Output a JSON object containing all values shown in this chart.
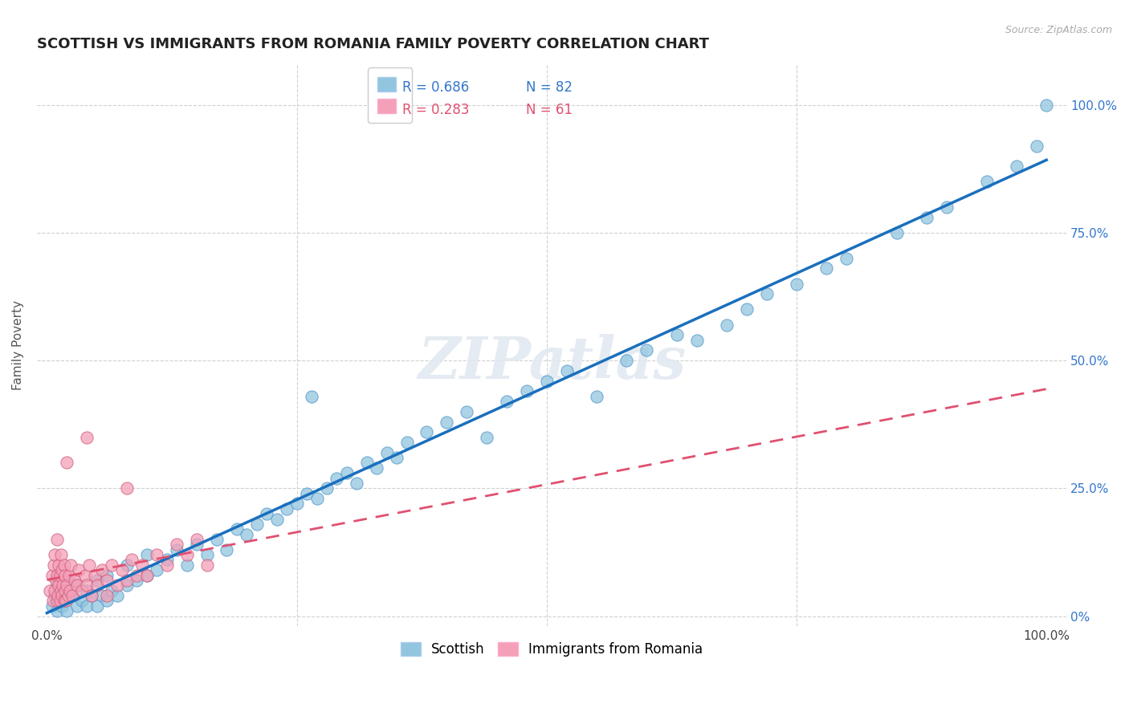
{
  "title": "SCOTTISH VS IMMIGRANTS FROM ROMANIA FAMILY POVERTY CORRELATION CHART",
  "source": "Source: ZipAtlas.com",
  "ylabel": "Family Poverty",
  "legend_bottom": [
    "Scottish",
    "Immigrants from Romania"
  ],
  "blue_R": 0.686,
  "blue_N": 82,
  "pink_R": 0.283,
  "pink_N": 61,
  "blue_color": "#92c5de",
  "pink_color": "#f4a0b8",
  "blue_line_color": "#1a6fbd",
  "pink_line_color": "#e05070",
  "blue_edge_color": "#5599cc",
  "pink_edge_color": "#d06080",
  "watermark": "ZIPatlas",
  "blue_scatter_x": [
    0.005,
    0.008,
    0.01,
    0.01,
    0.012,
    0.015,
    0.015,
    0.018,
    0.02,
    0.02,
    0.025,
    0.03,
    0.03,
    0.035,
    0.04,
    0.04,
    0.045,
    0.05,
    0.05,
    0.055,
    0.06,
    0.06,
    0.065,
    0.07,
    0.08,
    0.08,
    0.09,
    0.1,
    0.1,
    0.11,
    0.12,
    0.13,
    0.14,
    0.15,
    0.16,
    0.17,
    0.18,
    0.19,
    0.2,
    0.21,
    0.22,
    0.23,
    0.24,
    0.25,
    0.26,
    0.27,
    0.28,
    0.29,
    0.3,
    0.31,
    0.32,
    0.33,
    0.34,
    0.35,
    0.36,
    0.38,
    0.4,
    0.42,
    0.44,
    0.46,
    0.48,
    0.5,
    0.52,
    0.55,
    0.58,
    0.6,
    0.63,
    0.65,
    0.68,
    0.7,
    0.72,
    0.75,
    0.78,
    0.8,
    0.85,
    0.88,
    0.9,
    0.94,
    0.97,
    0.99,
    0.265,
    1.0
  ],
  "blue_scatter_y": [
    0.02,
    0.04,
    0.01,
    0.06,
    0.03,
    0.02,
    0.05,
    0.03,
    0.01,
    0.07,
    0.04,
    0.02,
    0.06,
    0.03,
    0.05,
    0.02,
    0.04,
    0.02,
    0.07,
    0.04,
    0.03,
    0.08,
    0.05,
    0.04,
    0.06,
    0.1,
    0.07,
    0.08,
    0.12,
    0.09,
    0.11,
    0.13,
    0.1,
    0.14,
    0.12,
    0.15,
    0.13,
    0.17,
    0.16,
    0.18,
    0.2,
    0.19,
    0.21,
    0.22,
    0.24,
    0.23,
    0.25,
    0.27,
    0.28,
    0.26,
    0.3,
    0.29,
    0.32,
    0.31,
    0.34,
    0.36,
    0.38,
    0.4,
    0.35,
    0.42,
    0.44,
    0.46,
    0.48,
    0.43,
    0.5,
    0.52,
    0.55,
    0.54,
    0.57,
    0.6,
    0.63,
    0.65,
    0.68,
    0.7,
    0.75,
    0.78,
    0.8,
    0.85,
    0.88,
    0.92,
    0.43,
    1.0
  ],
  "pink_scatter_x": [
    0.003,
    0.005,
    0.006,
    0.007,
    0.008,
    0.008,
    0.009,
    0.01,
    0.01,
    0.01,
    0.011,
    0.012,
    0.012,
    0.013,
    0.013,
    0.014,
    0.014,
    0.015,
    0.015,
    0.016,
    0.017,
    0.017,
    0.018,
    0.018,
    0.019,
    0.02,
    0.021,
    0.022,
    0.023,
    0.024,
    0.025,
    0.028,
    0.03,
    0.032,
    0.035,
    0.038,
    0.04,
    0.042,
    0.045,
    0.048,
    0.05,
    0.055,
    0.06,
    0.065,
    0.07,
    0.075,
    0.08,
    0.085,
    0.09,
    0.095,
    0.1,
    0.11,
    0.12,
    0.13,
    0.14,
    0.15,
    0.02,
    0.04,
    0.06,
    0.08,
    0.16
  ],
  "pink_scatter_y": [
    0.05,
    0.08,
    0.03,
    0.1,
    0.05,
    0.12,
    0.07,
    0.03,
    0.08,
    0.15,
    0.04,
    0.06,
    0.1,
    0.03,
    0.08,
    0.05,
    0.12,
    0.04,
    0.09,
    0.06,
    0.03,
    0.1,
    0.05,
    0.08,
    0.03,
    0.06,
    0.04,
    0.08,
    0.05,
    0.1,
    0.04,
    0.07,
    0.06,
    0.09,
    0.05,
    0.08,
    0.06,
    0.1,
    0.04,
    0.08,
    0.06,
    0.09,
    0.07,
    0.1,
    0.06,
    0.09,
    0.07,
    0.11,
    0.08,
    0.1,
    0.08,
    0.12,
    0.1,
    0.14,
    0.12,
    0.15,
    0.3,
    0.35,
    0.04,
    0.25,
    0.1
  ],
  "xlim": [
    0.0,
    1.0
  ],
  "ylim": [
    0.0,
    1.0
  ],
  "title_fontsize": 13,
  "axis_label_fontsize": 11,
  "tick_fontsize": 11,
  "legend_fontsize": 12
}
